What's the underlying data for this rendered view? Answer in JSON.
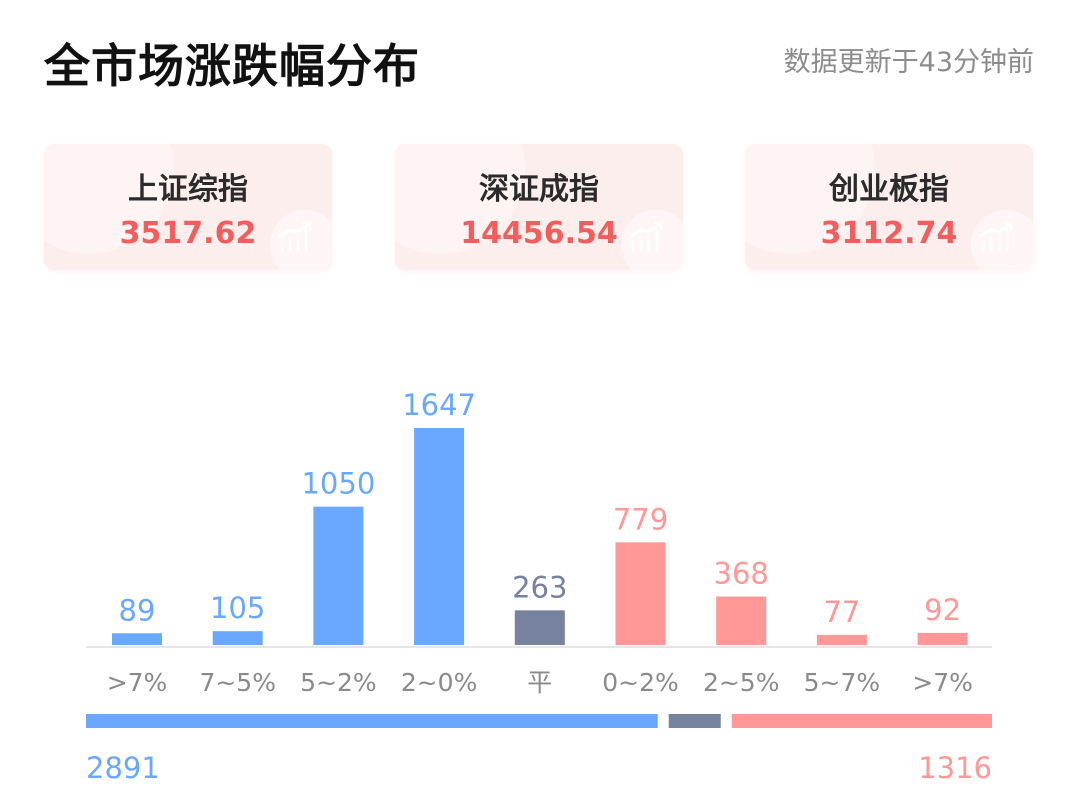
{
  "header": {
    "title": "全市场涨跌幅分布",
    "update_text": "数据更新于43分钟前"
  },
  "indices": [
    {
      "name": "上证综指",
      "value": "3517.62"
    },
    {
      "name": "深证成指",
      "value": "14456.54"
    },
    {
      "name": "创业板指",
      "value": "3112.74"
    }
  ],
  "colors": {
    "down": "#6aa8ff",
    "flat": "#76829e",
    "up": "#ff9896",
    "index_value": "#f25d5d",
    "card_bg": "#fdeeee"
  },
  "chart_data": {
    "type": "bar",
    "categories": [
      ">7%",
      "7~5%",
      "5~2%",
      "2~0%",
      "平",
      "0~2%",
      "2~5%",
      "5~7%",
      ">7%"
    ],
    "values": [
      89,
      105,
      1050,
      1647,
      263,
      779,
      368,
      77,
      92
    ],
    "groups": [
      "down",
      "down",
      "down",
      "down",
      "flat",
      "up",
      "up",
      "up",
      "up"
    ],
    "ylim": [
      0,
      1647
    ],
    "totals": {
      "down": "2891",
      "up": "1316"
    },
    "summary_bar": {
      "down": 2891,
      "flat": 263,
      "up": 1316
    }
  }
}
